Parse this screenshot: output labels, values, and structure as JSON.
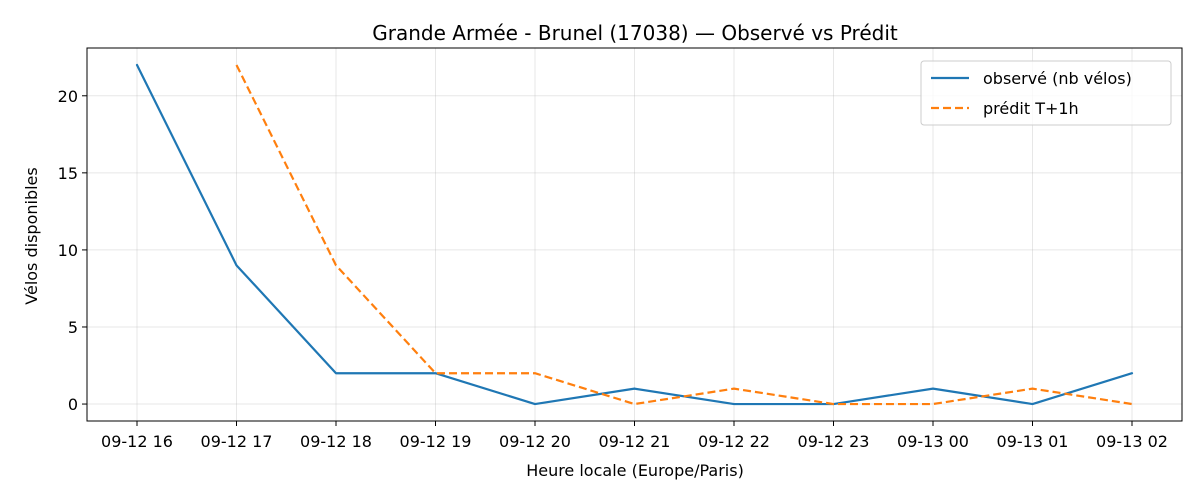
{
  "chart_data": {
    "type": "line",
    "title": "Grande Armée - Brunel (17038) — Observé vs Prédit",
    "xlabel": "Heure locale (Europe/Paris)",
    "ylabel": "Vélos disponibles",
    "x": [
      "09-12 16",
      "09-12 17",
      "09-12 18",
      "09-12 19",
      "09-12 20",
      "09-12 21",
      "09-12 22",
      "09-12 23",
      "09-13 00",
      "09-13 01",
      "09-13 02"
    ],
    "ylim": [
      -1.1,
      23.1
    ],
    "yticks": [
      0,
      5,
      10,
      15,
      20
    ],
    "grid": true,
    "legend_position": "top-right",
    "series": [
      {
        "name": "observé (nb vélos)",
        "color": "#1f77b4",
        "style": "solid",
        "values": [
          22,
          9,
          2,
          2,
          0,
          1,
          0,
          0,
          1,
          0,
          2
        ]
      },
      {
        "name": "prédit T+1h",
        "color": "#ff7f0e",
        "style": "dashed",
        "values": [
          null,
          22,
          9,
          2,
          2,
          0,
          1,
          0,
          0,
          1,
          0
        ]
      }
    ]
  }
}
